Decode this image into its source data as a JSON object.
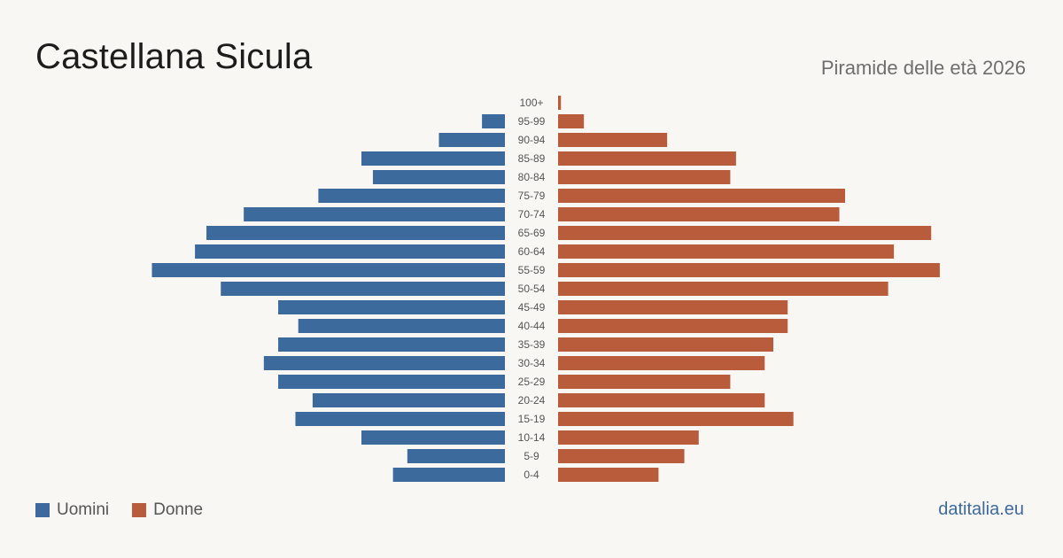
{
  "title": "Castellana Sicula",
  "subtitle": "Piramide delle età 2026",
  "site": "datitalia.eu",
  "colors": {
    "men": "#3d6a9c",
    "women": "#b95c3c",
    "label": "#555555"
  },
  "legend": {
    "men": "Uomini",
    "women": "Donne"
  },
  "chart_data": {
    "type": "bar",
    "orientation": "horizontal-pyramid",
    "categories": [
      "100+",
      "95-99",
      "90-94",
      "85-89",
      "80-84",
      "75-79",
      "70-74",
      "65-69",
      "60-64",
      "55-59",
      "50-54",
      "45-49",
      "40-44",
      "35-39",
      "30-34",
      "25-29",
      "20-24",
      "15-19",
      "10-14",
      "5-9",
      "0-4"
    ],
    "series": [
      {
        "name": "Uomini",
        "values": [
          0,
          8,
          23,
          50,
          46,
          65,
          91,
          104,
          108,
          123,
          99,
          79,
          72,
          79,
          84,
          79,
          67,
          73,
          50,
          34,
          39
        ]
      },
      {
        "name": "Donne",
        "values": [
          1,
          9,
          38,
          62,
          60,
          100,
          98,
          130,
          117,
          133,
          115,
          80,
          80,
          75,
          72,
          60,
          72,
          82,
          49,
          44,
          35
        ]
      }
    ]
  }
}
